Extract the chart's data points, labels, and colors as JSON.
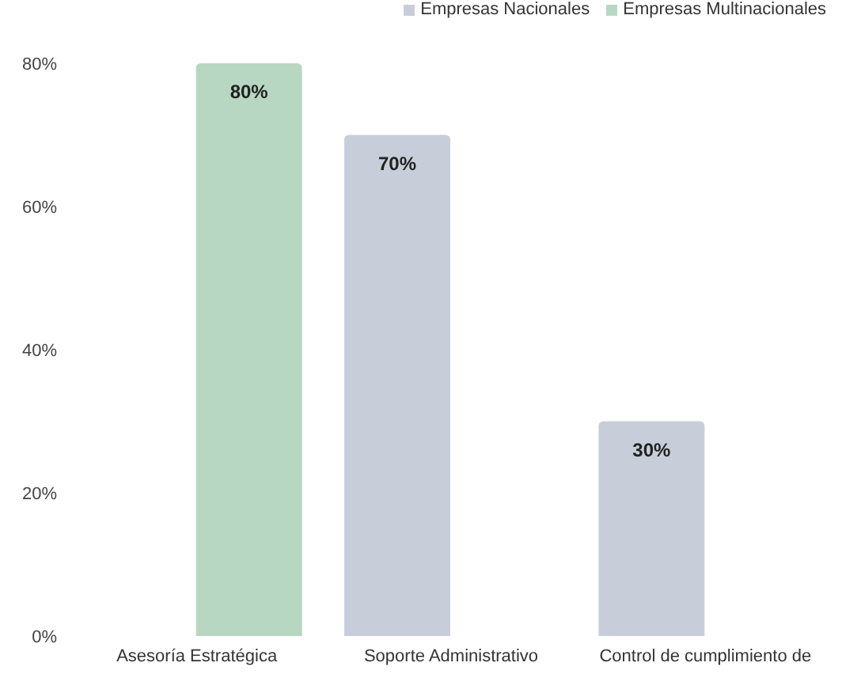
{
  "chart_data": {
    "type": "bar",
    "categories": [
      "Asesoría Estratégica",
      "Soporte Administrativo",
      "Control de cumplimiento de"
    ],
    "series": [
      {
        "name": "Empresas Nacionales",
        "color": "#c8ced9",
        "values": [
          null,
          70,
          30
        ],
        "value_labels": [
          null,
          "70%",
          "30%"
        ]
      },
      {
        "name": "Empresas Multinacionales",
        "color": "#b7d7c2",
        "values": [
          80,
          null,
          null
        ],
        "value_labels": [
          "80%",
          null,
          null
        ]
      }
    ],
    "ylim": [
      0,
      80
    ],
    "yticks": [
      {
        "value": 0,
        "label": "0%"
      },
      {
        "value": 20,
        "label": "20%"
      },
      {
        "value": 40,
        "label": "40%"
      },
      {
        "value": 60,
        "label": "60%"
      },
      {
        "value": 80,
        "label": "80%"
      }
    ],
    "legend": "top right"
  }
}
